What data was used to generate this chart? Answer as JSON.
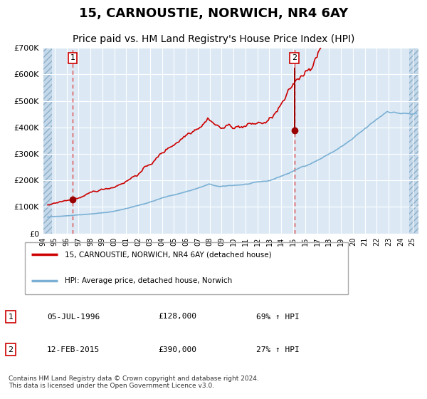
{
  "title": "15, CARNOUSTIE, NORWICH, NR4 6AY",
  "subtitle": "Price paid vs. HM Land Registry's House Price Index (HPI)",
  "title_fontsize": 13,
  "subtitle_fontsize": 10,
  "background_color": "#dce9f5",
  "red_line_color": "#cc0000",
  "blue_line_color": "#7ab0d4",
  "marker_color": "#990000",
  "dashed_line_color": "#dd4444",
  "yticks": [
    0,
    100000,
    200000,
    300000,
    400000,
    500000,
    600000,
    700000
  ],
  "ytick_labels": [
    "£0",
    "£100K",
    "£200K",
    "£300K",
    "£400K",
    "£500K",
    "£600K",
    "£700K"
  ],
  "xmin": 1994.0,
  "xmax": 2025.5,
  "ymin": 0,
  "ymax": 700000,
  "sale1_x": 1996.5,
  "sale1_y": 128000,
  "sale1_label": "1",
  "sale2_x": 2015.1,
  "sale2_y": 390000,
  "sale2_label": "2",
  "legend_line1": "15, CARNOUSTIE, NORWICH, NR4 6AY (detached house)",
  "legend_line2": "HPI: Average price, detached house, Norwich",
  "annot1_date": "05-JUL-1996",
  "annot1_price": "£128,000",
  "annot1_hpi": "69% ↑ HPI",
  "annot2_date": "12-FEB-2015",
  "annot2_price": "£390,000",
  "annot2_hpi": "27% ↑ HPI",
  "footnote": "Contains HM Land Registry data © Crown copyright and database right 2024.\nThis data is licensed under the Open Government Licence v3.0.",
  "grid_color": "#ffffff",
  "xtick_years": [
    1994,
    1995,
    1996,
    1997,
    1998,
    1999,
    2000,
    2001,
    2002,
    2003,
    2004,
    2005,
    2006,
    2007,
    2008,
    2009,
    2010,
    2011,
    2012,
    2013,
    2014,
    2015,
    2016,
    2017,
    2018,
    2019,
    2020,
    2021,
    2022,
    2023,
    2024,
    2025
  ],
  "hatch_left_end": 1994.75,
  "hatch_right_start": 2024.75
}
